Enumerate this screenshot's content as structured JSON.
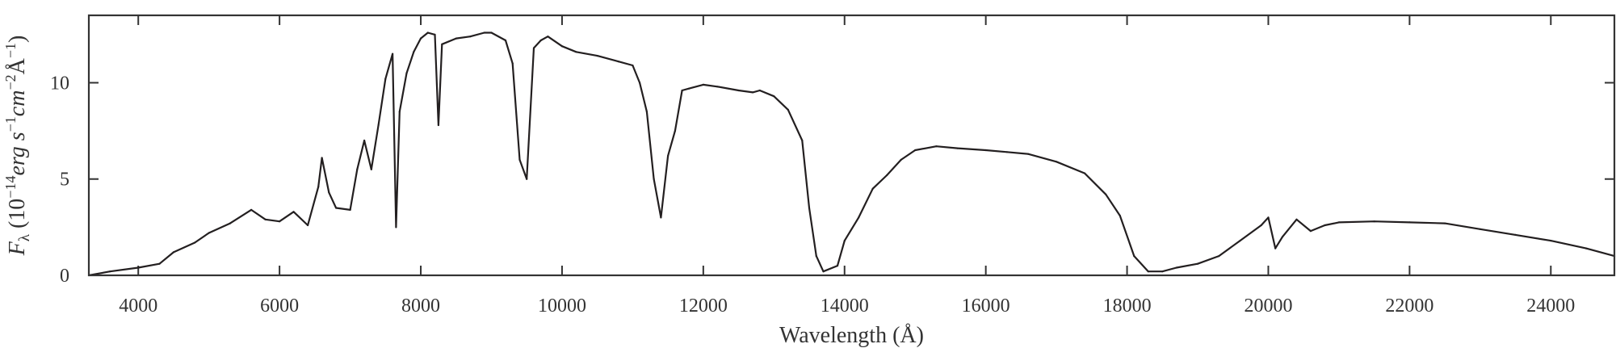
{
  "chart_data": {
    "type": "line",
    "title": "",
    "xlabel": "Wavelength (Å)",
    "ylabel": "F_λ (10^−14 erg s^−1 cm^−2 Å^−1)",
    "ylabel_parts": {
      "symbol": "F",
      "symbol_sub": "λ",
      "open": " (10",
      "exp1": "−14",
      "unit1": "erg s",
      "exp2": "−1",
      "unit2": "cm",
      "exp3": "−2",
      "unit3": "Å",
      "exp4": "−1",
      "close": ")"
    },
    "xlim": [
      3300,
      24900
    ],
    "ylim": [
      0,
      13.5
    ],
    "grid": false,
    "line_color": "#231f20",
    "axis_color": "#333333",
    "x_ticks": [
      4000,
      6000,
      8000,
      10000,
      12000,
      14000,
      16000,
      18000,
      20000,
      22000,
      24000
    ],
    "x_tick_labels": [
      "4000",
      "6000",
      "8000",
      "10000",
      "12000",
      "14000",
      "16000",
      "18000",
      "20000",
      "22000",
      "24000"
    ],
    "y_ticks": [
      0,
      5,
      10
    ],
    "y_tick_labels": [
      "0",
      "5",
      "10"
    ],
    "series": [
      {
        "x": [
          3300,
          3600,
          4000,
          4300,
          4500,
          4800,
          5000,
          5300,
          5600,
          5800,
          6000,
          6200,
          6400,
          6550,
          6600,
          6700,
          6800,
          7000,
          7100,
          7200,
          7300,
          7400,
          7500,
          7600,
          7650,
          7700,
          7800,
          7900,
          8000,
          8100,
          8200,
          8250,
          8300,
          8500,
          8700,
          8900,
          9000,
          9200,
          9300,
          9400,
          9500,
          9600,
          9700,
          9800,
          10000,
          10200,
          10500,
          10800,
          11000,
          11100,
          11200,
          11300,
          11400,
          11500,
          11600,
          11700,
          11800,
          12000,
          12200,
          12500,
          12700,
          12800,
          13000,
          13200,
          13400,
          13500,
          13600,
          13700,
          13900,
          14000,
          14200,
          14400,
          14600,
          14800,
          15000,
          15300,
          15600,
          16000,
          16300,
          16600,
          17000,
          17400,
          17700,
          17900,
          18100,
          18300,
          18500,
          18700,
          19000,
          19300,
          19600,
          19900,
          20000,
          20100,
          20200,
          20400,
          20600,
          20800,
          21000,
          21500,
          22000,
          22500,
          23000,
          23500,
          24000,
          24500,
          24900
        ],
        "y": [
          0.0,
          0.2,
          0.4,
          0.6,
          1.2,
          1.7,
          2.2,
          2.7,
          3.4,
          2.9,
          2.8,
          3.3,
          2.6,
          4.6,
          6.1,
          4.3,
          3.5,
          3.4,
          5.5,
          7.0,
          5.5,
          7.8,
          10.2,
          11.5,
          2.5,
          8.5,
          10.5,
          11.6,
          12.3,
          12.6,
          12.5,
          7.8,
          12.0,
          12.3,
          12.4,
          12.6,
          12.6,
          12.2,
          11.0,
          6.0,
          5.0,
          11.8,
          12.2,
          12.4,
          11.9,
          11.6,
          11.4,
          11.1,
          10.9,
          10.0,
          8.5,
          5.0,
          3.0,
          6.2,
          7.5,
          9.6,
          9.7,
          9.9,
          9.8,
          9.6,
          9.5,
          9.6,
          9.3,
          8.6,
          7.0,
          3.5,
          1.0,
          0.2,
          0.5,
          1.8,
          3.0,
          4.5,
          5.2,
          6.0,
          6.5,
          6.7,
          6.6,
          6.5,
          6.4,
          6.3,
          5.9,
          5.3,
          4.2,
          3.1,
          1.0,
          0.2,
          0.2,
          0.4,
          0.6,
          1.0,
          1.8,
          2.6,
          3.0,
          1.4,
          2.0,
          2.9,
          2.3,
          2.6,
          2.75,
          2.8,
          2.75,
          2.7,
          2.4,
          2.1,
          1.8,
          1.4,
          1.0
        ]
      }
    ]
  }
}
